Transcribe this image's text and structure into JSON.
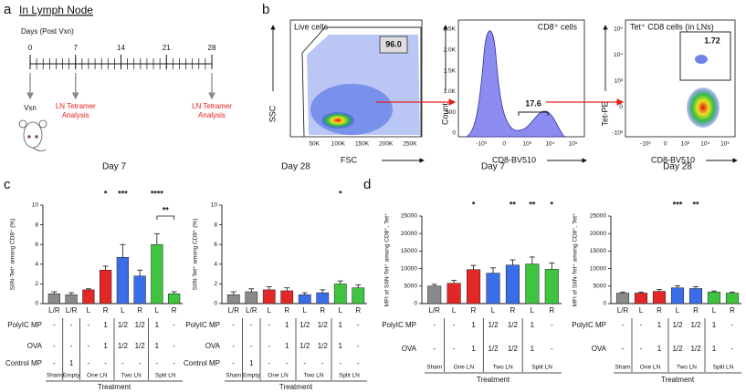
{
  "panel_labels": [
    "a",
    "b",
    "c",
    "d"
  ],
  "panel_a": {
    "title": "In Lymph Node",
    "axis_label": "Days (Post Vxn)",
    "xlim": [
      0,
      28
    ],
    "ticks": [
      0,
      7,
      14,
      21,
      28
    ],
    "vaccination": "Vxn",
    "analysis": [
      "LN Tetramer",
      "Analysis"
    ]
  },
  "panel_b": {
    "plots": [
      {
        "title": "Live cells",
        "gate": "96.0",
        "x_label": "FSC",
        "y_label": "SSC",
        "x_ticks": [
          "50K",
          "100K",
          "150K",
          "200K",
          "250K"
        ],
        "y_ticks": []
      },
      {
        "title": "CD8⁺ cells",
        "gate": "17.6",
        "x_label": "CD8-BV510",
        "y_label": "Count",
        "x_ticks": [
          "-10³",
          "0",
          "10³",
          "10⁴",
          "10⁵"
        ],
        "y_ticks": [
          "2.5K",
          "2.0K",
          "1.5K",
          "1.0K",
          "500",
          "0"
        ]
      },
      {
        "title": "Tet⁺ CD8 cells (in LNs)",
        "gate": "1.72",
        "x_label": "CD8-BV510",
        "y_label": "Tet-PE",
        "x_ticks": [
          "-10³",
          "0",
          "10³",
          "10⁴",
          "10⁵"
        ],
        "y_ticks": [
          "10⁵",
          "10⁴",
          "10³",
          "0",
          "-10³"
        ]
      }
    ]
  },
  "chart_data": [
    {
      "type": "bar",
      "title": "Day 7",
      "y_label": "SIIN-Tet⁺ among CD8⁺ (%)",
      "categories": [
        "L/R",
        "L/R",
        "L",
        "R",
        "L",
        "R",
        "L",
        "R"
      ],
      "values": [
        1.0,
        0.9,
        1.4,
        3.4,
        4.7,
        2.8,
        6.0,
        1.0
      ],
      "errors": [
        0.2,
        0.2,
        0.1,
        0.4,
        1.3,
        0.6,
        1.1,
        0.2
      ],
      "colors": [
        "#8a8a8a",
        "#8a8a8a",
        "#e32626",
        "#e32626",
        "#3a6ee8",
        "#3a6ee8",
        "#3fc43f",
        "#3fc43f"
      ],
      "significance": [
        null,
        null,
        null,
        "*",
        "***",
        null,
        "****",
        null
      ],
      "bracket_label": "**",
      "ylim": [
        0,
        10
      ],
      "yticks": [
        0,
        2,
        4,
        6,
        8,
        10
      ],
      "table": {
        "rows": [
          {
            "label": "PolyIC MP",
            "cells": [
              "-",
              "-",
              "-",
              "1",
              "1/2",
              "1/2",
              "1",
              "-"
            ]
          },
          {
            "label": "OVA",
            "cells": [
              "-",
              "-",
              "-",
              "1",
              "1/2",
              "1/2",
              "1",
              "-"
            ]
          },
          {
            "label": "Control MP",
            "cells": [
              "-",
              "1",
              "-",
              "-",
              "-",
              "-",
              "-",
              "-"
            ]
          }
        ],
        "groups": [
          "Sham",
          "Empty",
          "One LN",
          "Two LN",
          "Split LN"
        ],
        "footer": "Treatment"
      }
    },
    {
      "type": "bar",
      "title": "Day 28",
      "y_label": "SIIN-Tet⁺ among CD8⁺ (%)",
      "categories": [
        "L/R",
        "L/R",
        "L",
        "R",
        "L",
        "R",
        "L",
        "R"
      ],
      "values": [
        0.9,
        1.2,
        1.4,
        1.3,
        0.9,
        1.1,
        2.0,
        1.6
      ],
      "errors": [
        0.3,
        0.3,
        0.3,
        0.3,
        0.2,
        0.3,
        0.3,
        0.3
      ],
      "colors": [
        "#8a8a8a",
        "#8a8a8a",
        "#e32626",
        "#e32626",
        "#3a6ee8",
        "#3a6ee8",
        "#3fc43f",
        "#3fc43f"
      ],
      "significance": [
        null,
        null,
        null,
        null,
        null,
        null,
        "*",
        null
      ],
      "ylim": [
        0,
        10
      ],
      "yticks": [
        0,
        2,
        4,
        6,
        8,
        10
      ],
      "table": {
        "rows": [
          {
            "label": "PolyIC MP",
            "cells": [
              "-",
              "-",
              "-",
              "1",
              "1/2",
              "1/2",
              "1",
              "-"
            ]
          },
          {
            "label": "OVA",
            "cells": [
              "-",
              "-",
              "-",
              "1",
              "1/2",
              "1/2",
              "1",
              "-"
            ]
          },
          {
            "label": "Control MP",
            "cells": [
              "-",
              "1",
              "-",
              "-",
              "-",
              "-",
              "-",
              "-"
            ]
          }
        ],
        "groups": [
          "Sham",
          "Empty",
          "One LN",
          "Two LN",
          "Split LN"
        ],
        "footer": "Treatment"
      }
    },
    {
      "type": "bar",
      "title": "Day 7",
      "y_label": "MFI of SIIN-Tet⁺ among CD8⁺, Tet⁺",
      "categories": [
        "L/R",
        "L",
        "R",
        "L",
        "R",
        "L",
        "R"
      ],
      "values": [
        5000,
        5800,
        9700,
        8700,
        11000,
        11300,
        9800
      ],
      "errors": [
        500,
        800,
        1200,
        1500,
        1500,
        2000,
        1800
      ],
      "colors": [
        "#8a8a8a",
        "#e32626",
        "#e32626",
        "#3a6ee8",
        "#3a6ee8",
        "#3fc43f",
        "#3fc43f"
      ],
      "significance": [
        null,
        null,
        "*",
        null,
        "**",
        "**",
        "*"
      ],
      "ylim": [
        0,
        25000
      ],
      "yticks": [
        0,
        5000,
        10000,
        15000,
        20000,
        25000
      ],
      "table": {
        "rows": [
          {
            "label": "PolyIC MP",
            "cells": [
              "-",
              "-",
              "1",
              "1/2",
              "1/2",
              "1",
              "-"
            ]
          },
          {
            "label": "OVA",
            "cells": [
              "-",
              "-",
              "1",
              "1/2",
              "1/2",
              "1",
              "-"
            ]
          }
        ],
        "groups": [
          "Sham",
          "One LN",
          "Two LN",
          "Split LN"
        ],
        "footer": "Treatment"
      }
    },
    {
      "type": "bar",
      "title": "Day 28",
      "y_label": "MFI of SIIN-Tet⁺ among CD8⁺, Tet⁺",
      "categories": [
        "L/R",
        "L",
        "R",
        "L",
        "R",
        "L",
        "R"
      ],
      "values": [
        3000,
        3000,
        3500,
        4500,
        4300,
        3300,
        3000
      ],
      "errors": [
        300,
        300,
        500,
        600,
        500,
        300,
        300
      ],
      "colors": [
        "#8a8a8a",
        "#e32626",
        "#e32626",
        "#3a6ee8",
        "#3a6ee8",
        "#3fc43f",
        "#3fc43f"
      ],
      "significance": [
        null,
        null,
        null,
        "***",
        "**",
        null,
        null
      ],
      "ylim": [
        0,
        25000
      ],
      "yticks": [
        0,
        5000,
        10000,
        15000,
        20000,
        25000
      ],
      "table": {
        "rows": [
          {
            "label": "PolyIC MP",
            "cells": [
              "-",
              "-",
              "1",
              "1/2",
              "1/2",
              "1",
              "-"
            ]
          },
          {
            "label": "OVA",
            "cells": [
              "-",
              "-",
              "1",
              "1/2",
              "1/2",
              "1",
              "-"
            ]
          }
        ],
        "groups": [
          "Sham",
          "One LN",
          "Two LN",
          "Split LN"
        ],
        "footer": "Treatment"
      }
    }
  ]
}
